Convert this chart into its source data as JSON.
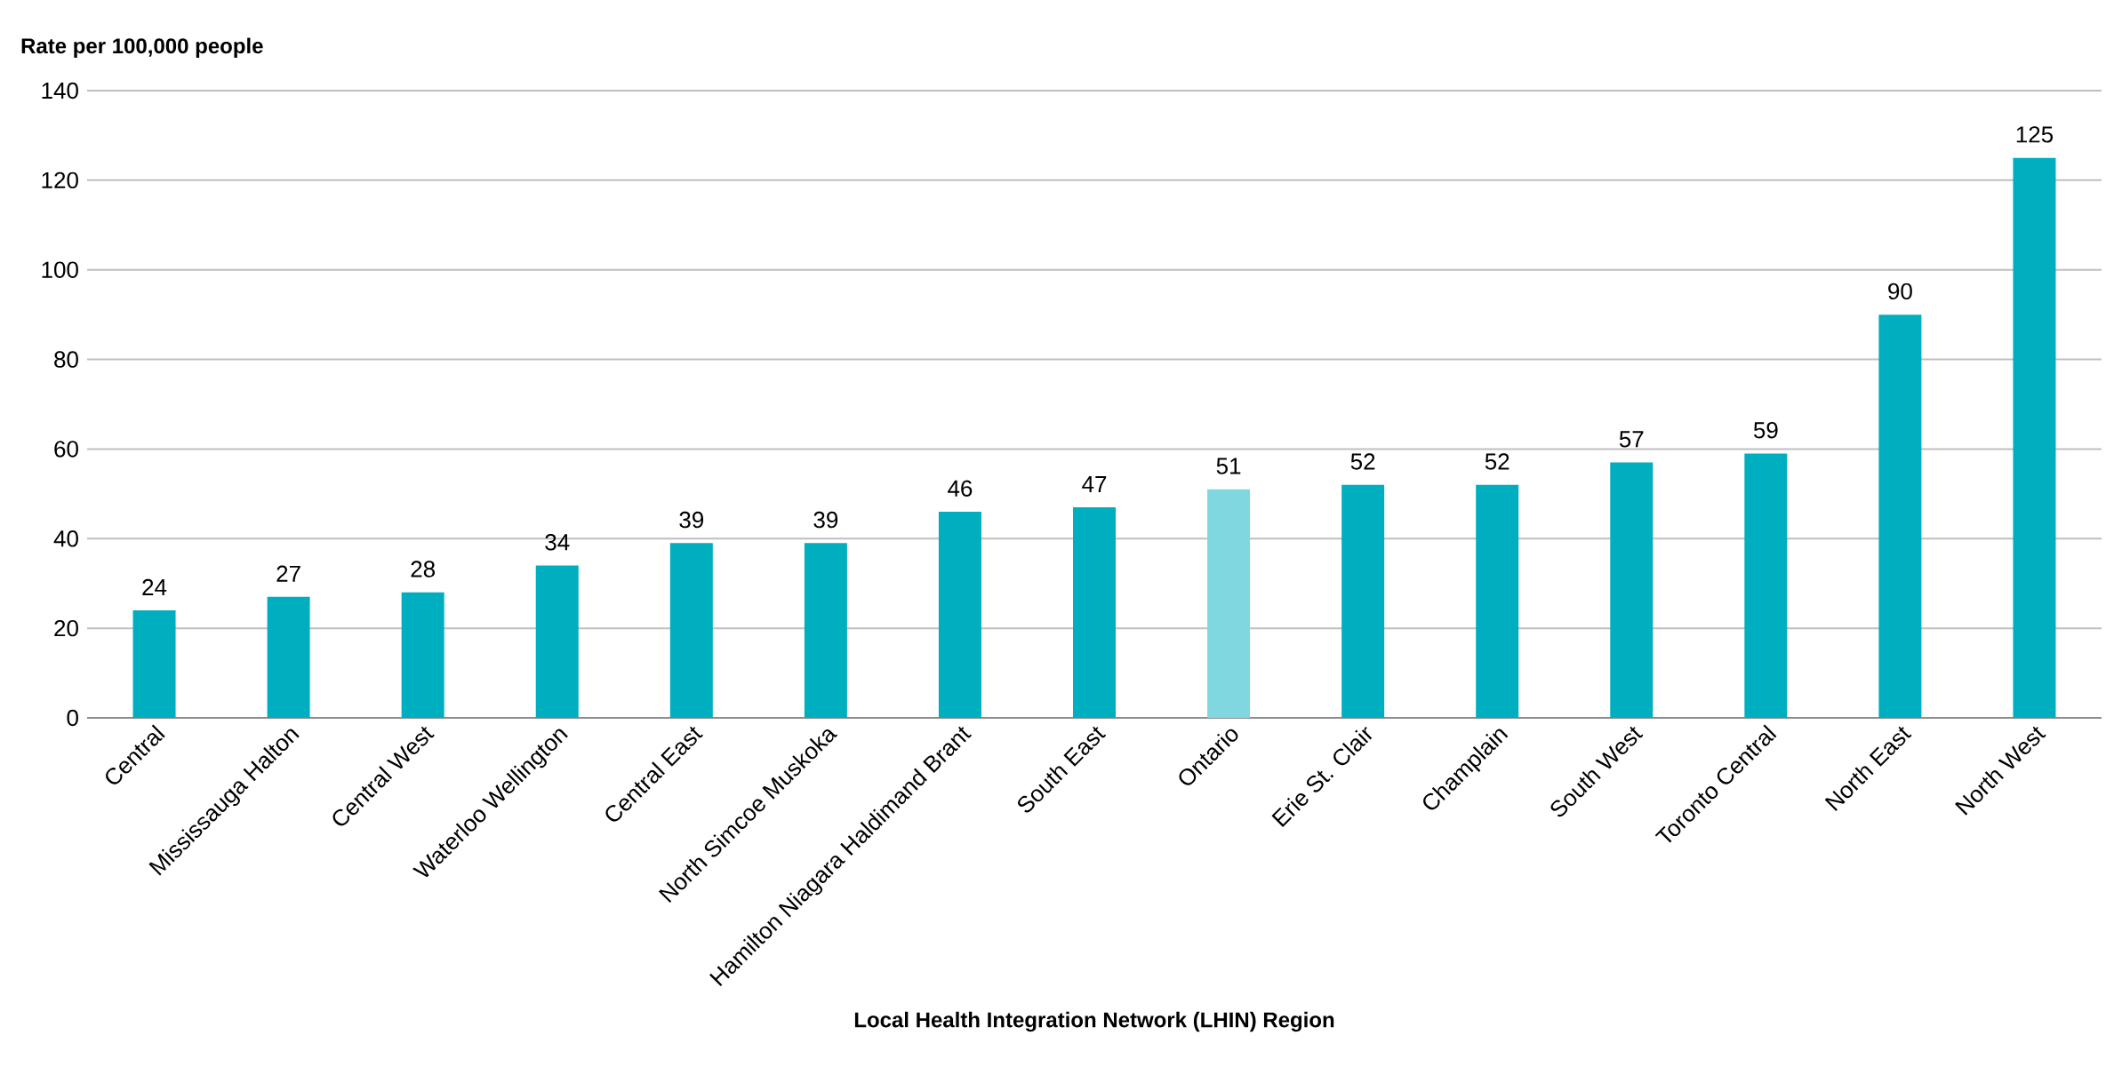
{
  "chart_data": {
    "type": "bar",
    "xlabel": "Local Health Integration Network (LHIN) Region",
    "ylabel": "Rate per 100,000 people",
    "categories": [
      "Central",
      "Mississauga Halton",
      "Central West",
      "Waterloo Wellington",
      "Central East",
      "North Simcoe Muskoka",
      "Hamilton Niagara Haldimand Brant",
      "South East",
      "Ontario",
      "Erie St. Clair",
      "Champlain",
      "South West",
      "Toronto Central",
      "North East",
      "North West"
    ],
    "values": [
      24,
      27,
      28,
      34,
      39,
      39,
      46,
      47,
      51,
      52,
      52,
      57,
      59,
      90,
      125
    ],
    "colors": [
      "#00afbf",
      "#00afbf",
      "#00afbf",
      "#00afbf",
      "#00afbf",
      "#00afbf",
      "#00afbf",
      "#00afbf",
      "#80d7df",
      "#00afbf",
      "#00afbf",
      "#00afbf",
      "#00afbf",
      "#00afbf",
      "#00afbf"
    ],
    "ylim": [
      0,
      140
    ],
    "yticks": [
      0,
      20,
      40,
      60,
      80,
      100,
      120,
      140
    ],
    "grid": "y",
    "data_labels": true
  }
}
